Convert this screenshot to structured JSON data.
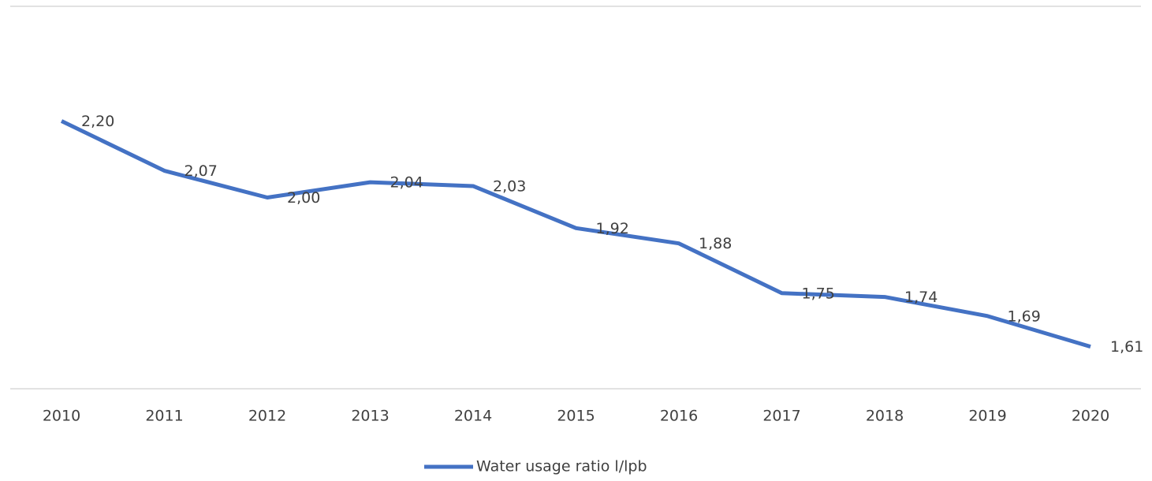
{
  "chart_data": {
    "type": "line",
    "categories": [
      "2010",
      "2011",
      "2012",
      "2013",
      "2014",
      "2015",
      "2016",
      "2017",
      "2018",
      "2019",
      "2020"
    ],
    "series": [
      {
        "name": "Water usage ratio l/lpb",
        "color": "#4472c4",
        "values": [
          2.2,
          2.07,
          2.0,
          2.04,
          2.03,
          1.92,
          1.88,
          1.75,
          1.74,
          1.69,
          1.61
        ],
        "value_labels": [
          "2,20",
          "2,07",
          "2,00",
          "2,04",
          "2,03",
          "1,92",
          "1,88",
          "1,75",
          "1,74",
          "1,69",
          "1,61"
        ]
      }
    ],
    "ylim": [
      1.5,
      2.5
    ],
    "legend": "bottom"
  }
}
